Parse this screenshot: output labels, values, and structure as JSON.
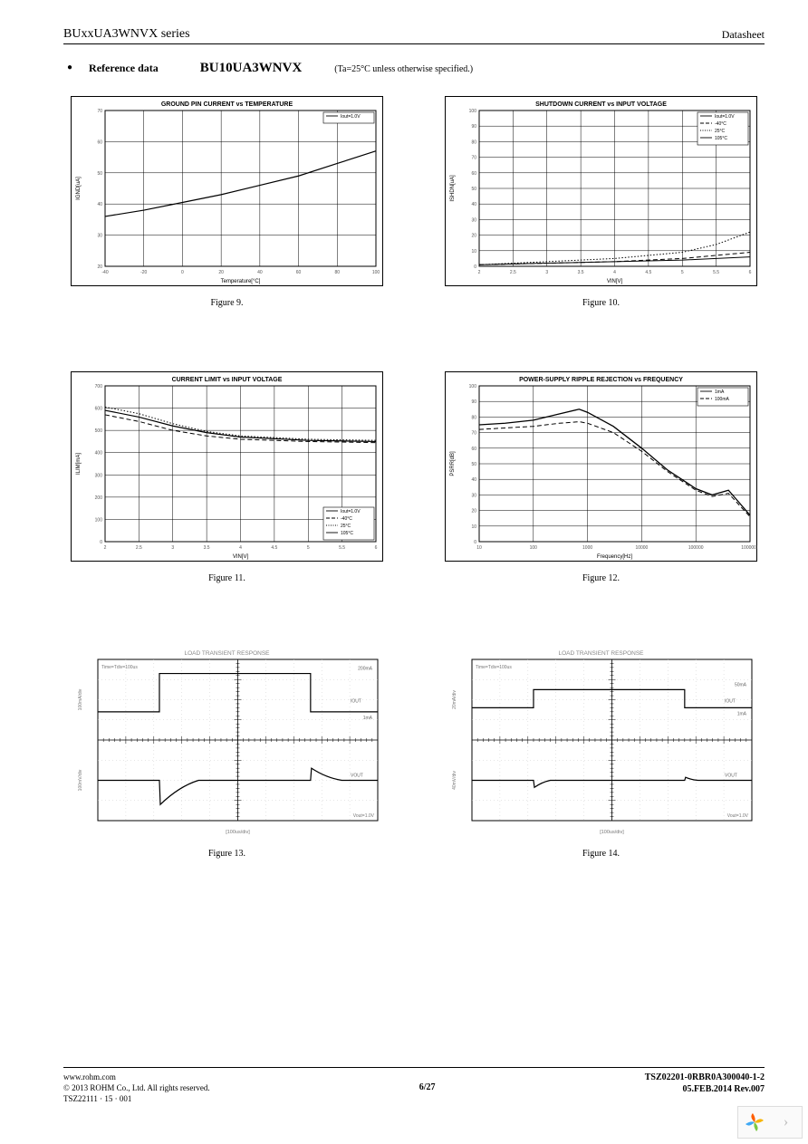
{
  "header": {
    "series": "BUxxUA3WNVX series",
    "doclabel": "Datasheet"
  },
  "refline": {
    "label": "Reference data",
    "partno": "BU10UA3WNVX",
    "condition": "(Ta=25°C unless otherwise specified.)"
  },
  "charts": [
    {
      "caption": "Figure 9.",
      "title": "GROUND PIN CURRENT vs TEMPERATURE",
      "xlabel": "Temperature[°C]",
      "ylabel": "IGND[uA]",
      "xlim": [
        -40,
        100
      ],
      "xtick_step": 20,
      "ylim": [
        20,
        70
      ],
      "ytick_step": 10,
      "legend_items": [
        "Iout=1.0V"
      ],
      "legend_pos": "top-right",
      "background": "#ffffff",
      "grid_color": "#000000",
      "series": [
        {
          "style": "solid",
          "color": "#000000",
          "width": 1.2,
          "x": [
            -40,
            -20,
            0,
            20,
            40,
            60,
            80,
            100
          ],
          "y": [
            36,
            38,
            40.5,
            43,
            46,
            49,
            53,
            57
          ]
        }
      ]
    },
    {
      "caption": "Figure 10.",
      "title": "SHUTDOWN CURRENT vs INPUT VOLTAGE",
      "xlabel": "VIN[V]",
      "ylabel": "ISHDN[uA]",
      "xlim": [
        2.0,
        6.0
      ],
      "xtick_step": 0.5,
      "ylim": [
        0,
        100
      ],
      "ytick_step": 10,
      "legend_items": [
        "Iout=1.0V",
        "-40°C",
        "25°C",
        "105°C"
      ],
      "legend_pos": "top-right",
      "background": "#ffffff",
      "grid_color": "#000000",
      "series": [
        {
          "style": "solid",
          "color": "#000000",
          "width": 1.0,
          "x": [
            2.0,
            3.0,
            4.0,
            5.0,
            5.5,
            6.0
          ],
          "y": [
            1,
            2,
            3,
            4,
            5,
            6
          ]
        },
        {
          "style": "dash",
          "color": "#000000",
          "width": 1.0,
          "x": [
            2.0,
            3.0,
            4.0,
            5.0,
            5.5,
            6.0
          ],
          "y": [
            1,
            2,
            3,
            5,
            7,
            9
          ]
        },
        {
          "style": "dot",
          "color": "#000000",
          "width": 1.0,
          "x": [
            2.0,
            3.0,
            4.0,
            5.0,
            5.5,
            6.0
          ],
          "y": [
            1,
            3,
            5,
            9,
            14,
            22
          ]
        }
      ]
    },
    {
      "caption": "Figure 11.",
      "title": "CURRENT LIMIT vs INPUT VOLTAGE",
      "xlabel": "VIN[V]",
      "ylabel": "ILIM[mA]",
      "xlim": [
        2.0,
        6.0
      ],
      "xtick_step": 0.5,
      "ylim": [
        0,
        700
      ],
      "ytick_step": 100,
      "legend_items": [
        "Iout=1.0V",
        "-40°C",
        "25°C",
        "105°C"
      ],
      "legend_pos": "bottom-right",
      "background": "#ffffff",
      "grid_color": "#000000",
      "series": [
        {
          "style": "solid",
          "color": "#000000",
          "width": 1.2,
          "x": [
            2.0,
            2.5,
            3.0,
            3.5,
            4.0,
            5.0,
            6.0
          ],
          "y": [
            590,
            560,
            520,
            490,
            470,
            455,
            450
          ]
        },
        {
          "style": "dash",
          "color": "#000000",
          "width": 1.0,
          "x": [
            2.0,
            2.5,
            3.0,
            3.5,
            4.0,
            5.0,
            6.0
          ],
          "y": [
            570,
            540,
            500,
            475,
            460,
            450,
            445
          ]
        },
        {
          "style": "dot",
          "color": "#000000",
          "width": 1.0,
          "x": [
            2.0,
            2.5,
            3.0,
            3.5,
            4.0,
            5.0,
            6.0
          ],
          "y": [
            605,
            575,
            530,
            495,
            475,
            460,
            455
          ]
        }
      ]
    },
    {
      "caption": "Figure 12.",
      "title": "POWER-SUPPLY RIPPLE REJECTION vs FREQUENCY",
      "xlabel": "Frequency[Hz]",
      "ylabel": "PSRR[dB]",
      "xscale": "log",
      "xlim": [
        10,
        1000000
      ],
      "xticks": [
        10,
        100,
        1000,
        10000,
        100000,
        1000000
      ],
      "ylim": [
        0,
        100
      ],
      "ytick_step": 10,
      "legend_items": [
        "1mA",
        "100mA"
      ],
      "legend_pos": "top-right",
      "background": "#ffffff",
      "grid_color": "#000000",
      "series": [
        {
          "style": "solid",
          "color": "#000000",
          "width": 1.3,
          "x": [
            10,
            30,
            100,
            300,
            700,
            1000,
            3000,
            10000,
            30000,
            100000,
            200000,
            400000,
            1000000
          ],
          "y": [
            75,
            76,
            78,
            82,
            85,
            83,
            74,
            60,
            46,
            34,
            30,
            33,
            17
          ]
        },
        {
          "style": "dash",
          "color": "#000000",
          "width": 1.0,
          "x": [
            10,
            30,
            100,
            300,
            700,
            1000,
            3000,
            10000,
            30000,
            100000,
            200000,
            400000,
            1000000
          ],
          "y": [
            72,
            73,
            74,
            76,
            77,
            76,
            70,
            58,
            45,
            33,
            29,
            31,
            16
          ]
        }
      ]
    }
  ],
  "scopes": [
    {
      "caption": "Figure 13.",
      "title": "LOAD TRANSIENT RESPONSE",
      "xlabel": "[100us/div]",
      "timebase_text": "Time=Tdiv=100us",
      "vout_text": "Vout=1.0V",
      "grid_divs_x": 10,
      "grid_divs_y": 8,
      "background": "#ffffff",
      "grid_color": "#cccccc",
      "traces": [
        {
          "label": "IOUT",
          "ydiv_label": "100mA/div",
          "center_div": 6.0,
          "low_div": 5.4,
          "high_div": 7.3,
          "t_rise_div": 2.2,
          "t_fall_div": 7.6,
          "annot_low": "1mA",
          "annot_high": "200mA",
          "color": "#000000"
        },
        {
          "label": "VOUT",
          "ydiv_label": "100mV/div",
          "center_div": 2.0,
          "dip_depth_div": 1.2,
          "overshoot_div": 0.6,
          "t_rise_div": 2.2,
          "t_fall_div": 7.6,
          "recover_div": 1.4,
          "color": "#000000"
        }
      ]
    },
    {
      "caption": "Figure 14.",
      "title": "LOAD TRANSIENT RESPONSE",
      "xlabel": "[100us/div]",
      "timebase_text": "Time=Tdiv=100us",
      "vout_text": "Vout=1.0V",
      "grid_divs_x": 10,
      "grid_divs_y": 8,
      "background": "#ffffff",
      "grid_color": "#cccccc",
      "traces": [
        {
          "label": "IOUT",
          "ydiv_label": "20mA/div",
          "center_div": 6.0,
          "low_div": 5.6,
          "high_div": 6.5,
          "t_rise_div": 2.2,
          "t_fall_div": 7.6,
          "annot_low": "1mA",
          "annot_high": "50mA",
          "color": "#000000"
        },
        {
          "label": "VOUT",
          "ydiv_label": "40mV/div",
          "center_div": 2.0,
          "dip_depth_div": 0.35,
          "overshoot_div": 0.15,
          "t_rise_div": 2.2,
          "t_fall_div": 7.6,
          "recover_div": 0.6,
          "color": "#000000"
        }
      ]
    }
  ],
  "footer": {
    "url": "www.rohm.com",
    "copyright": "© 2013 ROHM Co., Ltd. All rights reserved.",
    "docno3": "TSZ22111 · 15 · 001",
    "page": "6/27",
    "docno": "TSZ02201-0RBR0A300040-1-2",
    "date": "05.FEB.2014 Rev.007"
  },
  "nav": {
    "next_glyph": "›"
  },
  "logo_colors": [
    "#f7b500",
    "#7ac943",
    "#3fa9f5",
    "#ff5e00"
  ]
}
